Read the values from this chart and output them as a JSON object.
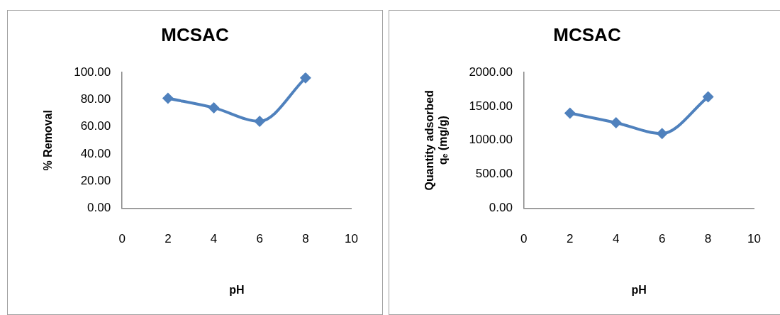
{
  "chart_data": [
    {
      "type": "line",
      "title": "MCSAC",
      "xlabel": "pH",
      "ylabel": "% Removal",
      "x": [
        2,
        4,
        6,
        8
      ],
      "series": [
        {
          "color": "#4f81bd",
          "values": [
            81,
            74,
            64,
            96
          ]
        }
      ],
      "xlim": [
        0,
        10
      ],
      "xticks": [
        0,
        2,
        4,
        6,
        8,
        10
      ],
      "ylim": [
        0,
        100
      ],
      "yticks": [
        {
          "value": 0,
          "label": "0.00"
        },
        {
          "value": 20,
          "label": "20.00"
        },
        {
          "value": 40,
          "label": "40.00"
        },
        {
          "value": 60,
          "label": "60.00"
        },
        {
          "value": 80,
          "label": "80.00"
        },
        {
          "value": 100,
          "label": "100.00"
        }
      ],
      "grid": false,
      "legend": false,
      "marker": "diamond",
      "line_style": "solid"
    },
    {
      "type": "line",
      "title": "MCSAC",
      "xlabel": "pH",
      "ylabel": "Quantity adsorbed\nqₑ (mg/g)",
      "x": [
        2,
        4,
        6,
        8
      ],
      "series": [
        {
          "color": "#4f81bd",
          "values": [
            1400,
            1260,
            1100,
            1640
          ]
        }
      ],
      "xlim": [
        0,
        10
      ],
      "xticks": [
        0,
        2,
        4,
        6,
        8,
        10
      ],
      "ylim": [
        0,
        2000
      ],
      "yticks": [
        {
          "value": 0,
          "label": "0.00"
        },
        {
          "value": 500,
          "label": "500.00"
        },
        {
          "value": 1000,
          "label": "1000.00"
        },
        {
          "value": 1500,
          "label": "1500.00"
        },
        {
          "value": 2000,
          "label": "2000.00"
        }
      ],
      "grid": false,
      "legend": false,
      "marker": "diamond",
      "line_style": "solid"
    }
  ]
}
